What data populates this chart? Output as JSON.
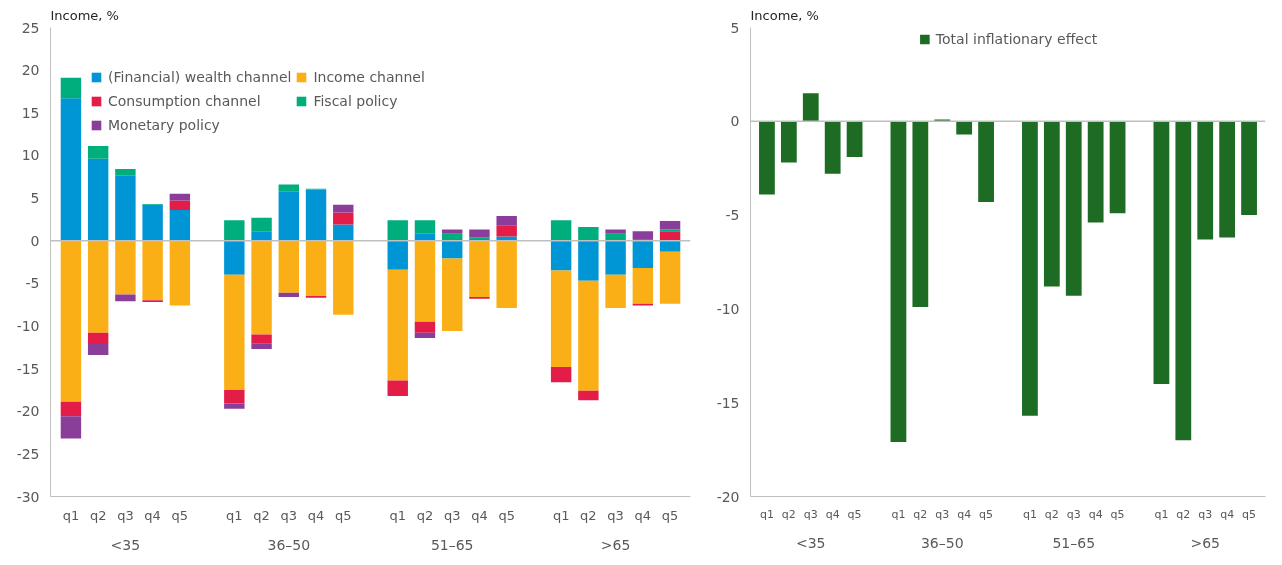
{
  "chart_data": [
    {
      "type": "bar",
      "stacked": true,
      "ylabel": "Income, %",
      "categories": [
        "q1",
        "q2",
        "q3",
        "q4",
        "q5",
        "q1",
        "q2",
        "q3",
        "q4",
        "q5",
        "q1",
        "q2",
        "q3",
        "q4",
        "q5",
        "q1",
        "q2",
        "q3",
        "q4",
        "q5"
      ],
      "annotations": [
        "<35",
        "36–50",
        "51–65",
        ">65"
      ],
      "series": [
        {
          "name": "(Financial) wealth channel",
          "color": "#0096d6",
          "values": [
            16.7,
            9.6,
            7.6,
            4.2,
            3.6,
            -4.0,
            1.1,
            5.8,
            6.0,
            1.9,
            -3.4,
            0.8,
            -2.1,
            0.2,
            0.5,
            -3.5,
            -4.7,
            -4.0,
            -3.2,
            -1.3
          ]
        },
        {
          "name": "Income channel",
          "color": "#fbaf17",
          "values": [
            -18.9,
            -10.8,
            -6.3,
            -7.0,
            -7.6,
            -13.5,
            -11.0,
            -6.1,
            -6.5,
            -8.7,
            -13.0,
            -9.5,
            -8.5,
            -6.6,
            -7.9,
            -11.3,
            -12.9,
            -3.9,
            -4.2,
            -6.1
          ]
        },
        {
          "name": "Consumption channel",
          "color": "#e31c48",
          "values": [
            -1.7,
            -1.2,
            0,
            -0.2,
            1.1,
            -1.6,
            -1.1,
            0,
            -0.2,
            1.4,
            -1.8,
            -1.3,
            0,
            -0.2,
            1.3,
            -1.8,
            -1.1,
            0,
            -0.2,
            1.1
          ]
        },
        {
          "name": "Fiscal policy",
          "color": "#00ad7c",
          "values": [
            2.4,
            1.5,
            0.8,
            0.1,
            0,
            2.4,
            1.6,
            0.8,
            0.1,
            0,
            2.4,
            1.6,
            0.8,
            0.2,
            0,
            2.4,
            1.6,
            0.8,
            0.2,
            0.2
          ]
        },
        {
          "name": "Monetary policy",
          "color": "#8b3d9a",
          "values": [
            -2.6,
            -1.4,
            -0.8,
            0,
            0.8,
            -0.6,
            -0.6,
            -0.5,
            0,
            0.9,
            0,
            -0.6,
            0.5,
            0.9,
            1.1,
            0,
            0,
            0.5,
            0.9,
            1.0
          ]
        }
      ],
      "ylim": [
        -30,
        25
      ],
      "yticks": [
        -30,
        -25,
        -20,
        -15,
        -10,
        -5,
        0,
        5,
        10,
        15,
        20,
        25
      ],
      "legend": "top left",
      "ref_lines": [
        {
          "axis": "y",
          "value": 0,
          "color": "#bfbfbf"
        }
      ]
    },
    {
      "type": "bar",
      "ylabel": "Income, %",
      "categories": [
        "q1",
        "q2",
        "q3",
        "q4",
        "q5",
        "q1",
        "q2",
        "q3",
        "q4",
        "q5",
        "q1",
        "q2",
        "q3",
        "q4",
        "q5",
        "q1",
        "q2",
        "q3",
        "q4",
        "q5"
      ],
      "annotations": [
        "<35",
        "36–50",
        "51–65",
        ">65"
      ],
      "series": [
        {
          "name": "Total inflationary effect",
          "color": "#1e6b24",
          "values": [
            -3.9,
            -2.2,
            1.5,
            -2.8,
            -1.9,
            -17.1,
            -9.9,
            0.1,
            -0.7,
            -4.3,
            -15.7,
            -8.8,
            -9.3,
            -5.4,
            -4.9,
            -14.0,
            -17.0,
            -6.3,
            -6.2,
            -5.0
          ]
        }
      ],
      "ylim": [
        -20,
        5
      ],
      "yticks": [
        -20,
        -15,
        -10,
        -5,
        0,
        5
      ],
      "legend": "top",
      "ref_lines": [
        {
          "axis": "y",
          "value": 0,
          "color": "#bfbfbf"
        }
      ]
    }
  ]
}
